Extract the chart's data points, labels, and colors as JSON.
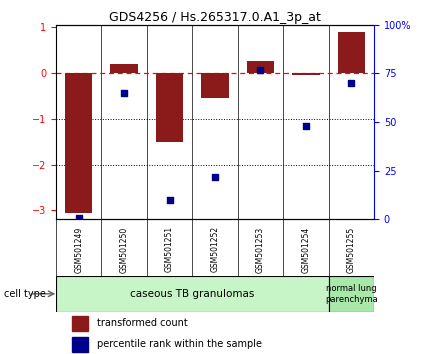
{
  "title": "GDS4256 / Hs.265317.0.A1_3p_at",
  "samples": [
    "GSM501249",
    "GSM501250",
    "GSM501251",
    "GSM501252",
    "GSM501253",
    "GSM501254",
    "GSM501255"
  ],
  "transformed_count": [
    -3.05,
    0.2,
    -1.5,
    -0.55,
    0.25,
    -0.05,
    0.9
  ],
  "percentile_rank": [
    1,
    65,
    10,
    22,
    77,
    48,
    70
  ],
  "ylim_left": [
    -3.2,
    1.05
  ],
  "ylim_right": [
    0,
    100
  ],
  "yticks_left": [
    -3,
    -2,
    -1,
    0,
    1
  ],
  "yticks_right": [
    0,
    25,
    50,
    75,
    100
  ],
  "yticklabels_right": [
    "0",
    "25",
    "50",
    "75",
    "100%"
  ],
  "bar_color": "#8B1A1A",
  "scatter_color": "#00008B",
  "dotted_lines": [
    -1,
    -2
  ],
  "group1_label": "caseous TB granulomas",
  "group2_label": "normal lung\nparenchyma",
  "group1_color": "#c8f5c8",
  "group2_color": "#a8e8a8",
  "cell_type_label": "cell type",
  "legend_bar_label": "transformed count",
  "legend_scatter_label": "percentile rank within the sample",
  "bar_width": 0.6
}
